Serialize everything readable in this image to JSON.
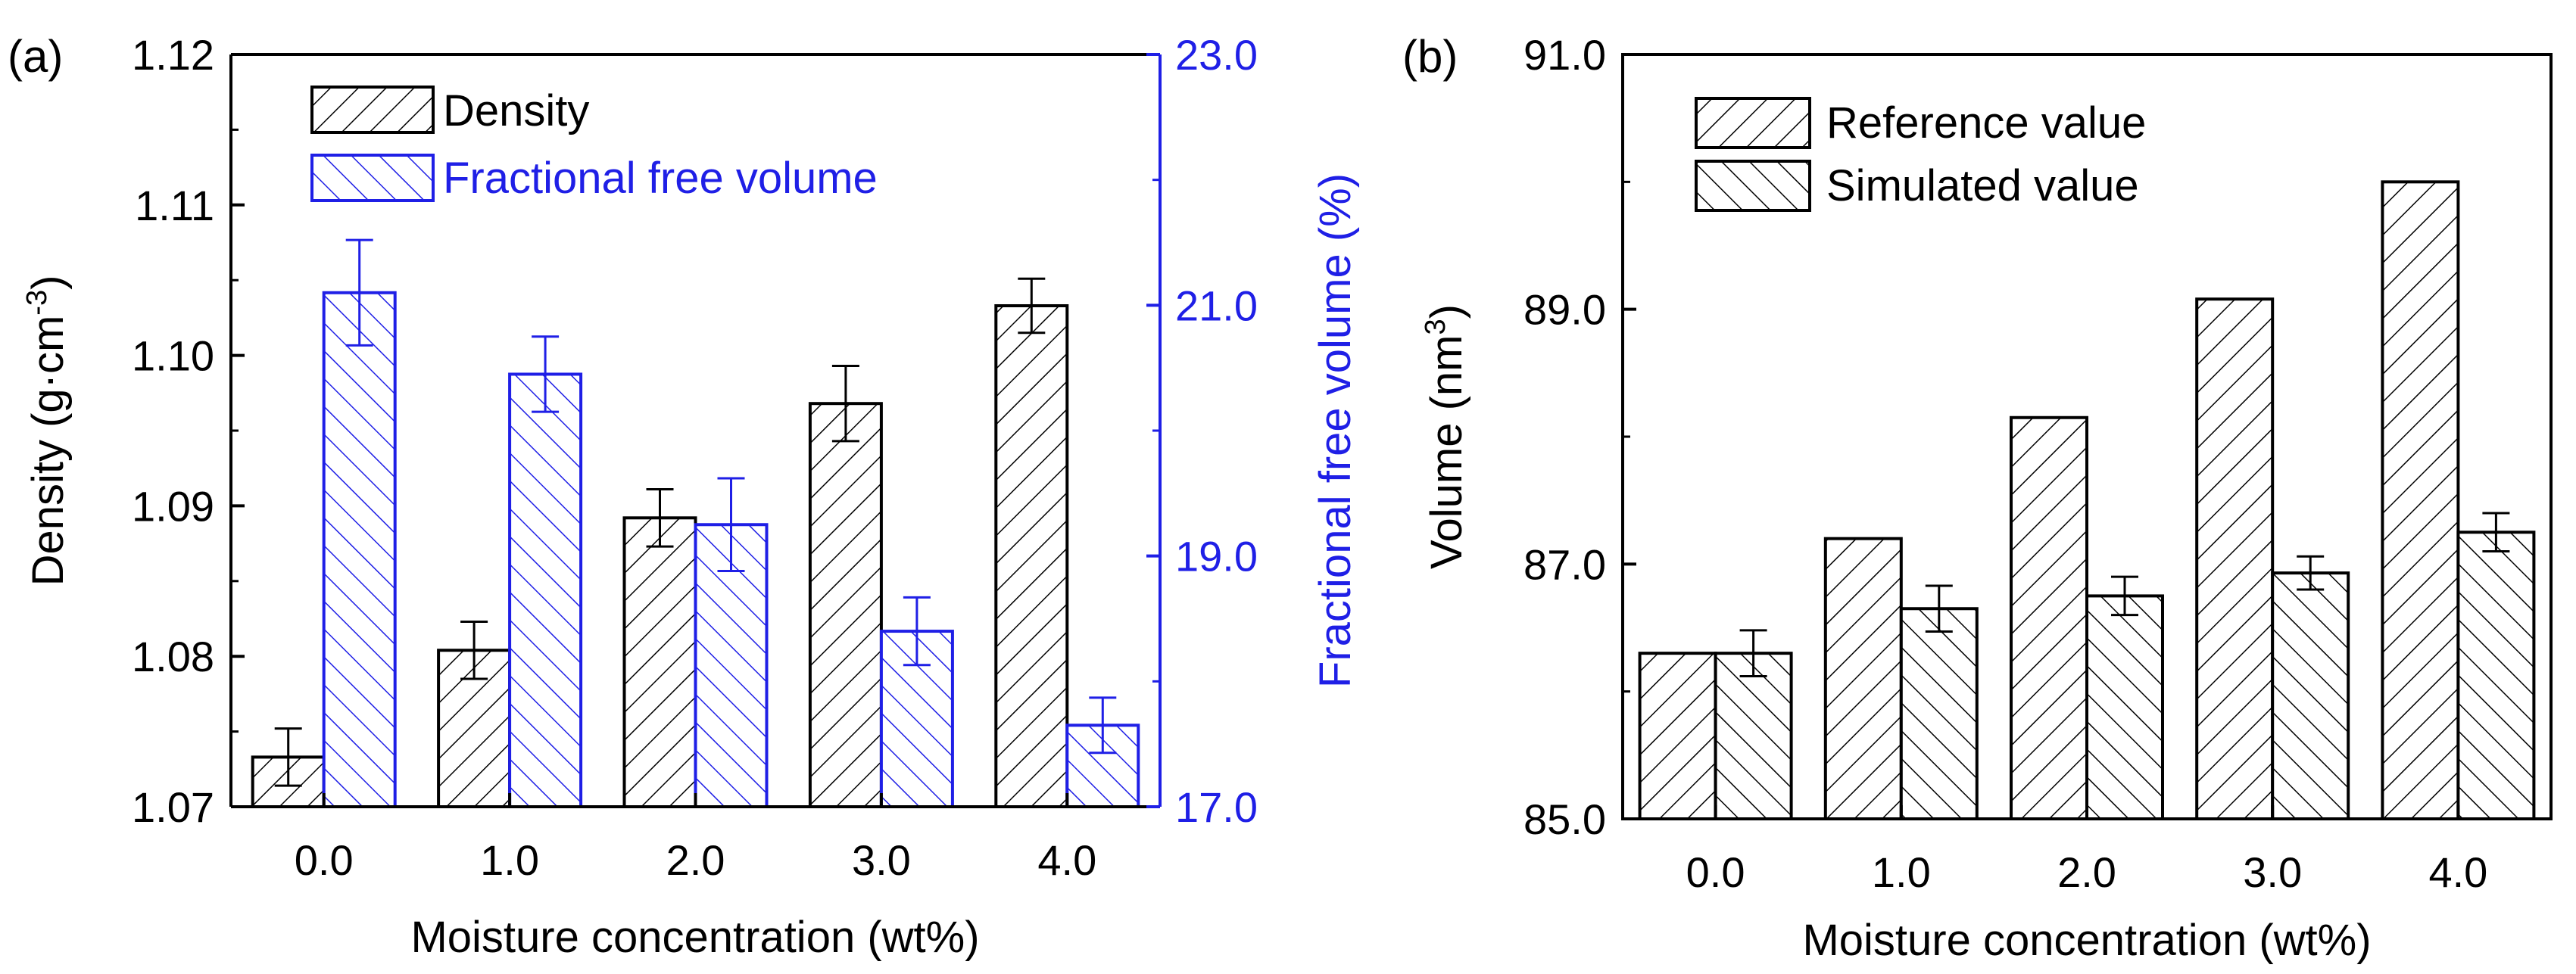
{
  "colors": {
    "black": "#000000",
    "blue": "#1f1fe6",
    "background": "#ffffff"
  },
  "chart_data": [
    {
      "type": "bar",
      "panel_label": "(a)",
      "categories": [
        "0.0",
        "1.0",
        "2.0",
        "3.0",
        "4.0"
      ],
      "xlabel": "Moisture concentration (wt%)",
      "ylabel_main": "Density (g·cm",
      "ylabel_sup": "-3",
      "ylabel_close": ")",
      "y2label": "Fractional free volume (%)",
      "ylim": [
        1.07,
        1.12
      ],
      "y2lim": [
        17.0,
        23.0
      ],
      "yticks": [
        "1.07",
        "1.08",
        "1.09",
        "1.10",
        "1.11",
        "1.12"
      ],
      "y2ticks": [
        "17.0",
        "19.0",
        "21.0",
        "23.0"
      ],
      "legend_position": "top-left",
      "series": [
        {
          "name": "Density",
          "axis": "left",
          "color": "#000000",
          "values": [
            1.0733,
            1.0804,
            1.0892,
            1.0968,
            1.1033
          ],
          "errors": [
            0.0019,
            0.0019,
            0.0019,
            0.0025,
            0.0018
          ]
        },
        {
          "name": "Fractional free volume",
          "axis": "right",
          "color": "#1f1fe6",
          "values": [
            21.1,
            20.45,
            19.25,
            18.4,
            17.65
          ],
          "errors": [
            0.42,
            0.3,
            0.37,
            0.27,
            0.22
          ]
        }
      ]
    },
    {
      "type": "bar",
      "panel_label": "(b)",
      "categories": [
        "0.0",
        "1.0",
        "2.0",
        "3.0",
        "4.0"
      ],
      "xlabel": "Moisture concentration (wt%)",
      "ylabel_main": "Volume (nm",
      "ylabel_sup": "3",
      "ylabel_close": ")",
      "ylim": [
        85.0,
        91.0
      ],
      "yticks": [
        "85.0",
        "87.0",
        "89.0",
        "91.0"
      ],
      "legend_position": "top-left",
      "series": [
        {
          "name": "Reference value",
          "color": "#000000",
          "values": [
            86.3,
            87.2,
            88.15,
            89.08,
            90.0
          ],
          "errors": null
        },
        {
          "name": "Simulated value",
          "color": "#000000",
          "values": [
            86.3,
            86.65,
            86.75,
            86.93,
            87.25
          ],
          "errors": [
            0.18,
            0.18,
            0.15,
            0.13,
            0.15
          ]
        }
      ]
    }
  ]
}
